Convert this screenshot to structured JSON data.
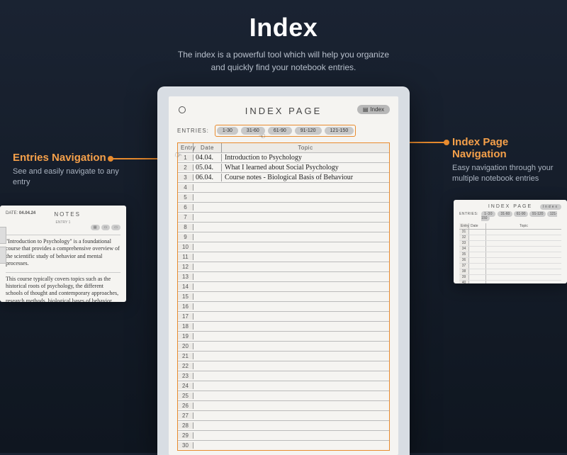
{
  "hero": {
    "title": "Index",
    "subtitle_l1": "The index is a powerful tool which will help you organize",
    "subtitle_l2": "and quickly find your notebook entries."
  },
  "tablet": {
    "title": "INDEX PAGE",
    "badge": "Index",
    "entries_label": "ENTRIES:",
    "ranges": [
      "1-30",
      "31-60",
      "61-90",
      "91-120",
      "121-150"
    ],
    "columns": {
      "entry": "Entry",
      "date": "Date",
      "topic": "Topic"
    },
    "rows": [
      {
        "n": "1",
        "d": "04.04.",
        "t": "Introduction to Psychology"
      },
      {
        "n": "2",
        "d": "05.04.",
        "t": "What I learned about Social Psychology"
      },
      {
        "n": "3",
        "d": "06.04.",
        "t": "Course notes - Biological Basis of Behaviour"
      },
      {
        "n": "4",
        "d": "",
        "t": ""
      },
      {
        "n": "5",
        "d": "",
        "t": ""
      },
      {
        "n": "6",
        "d": "",
        "t": ""
      },
      {
        "n": "7",
        "d": "",
        "t": ""
      },
      {
        "n": "8",
        "d": "",
        "t": ""
      },
      {
        "n": "9",
        "d": "",
        "t": ""
      },
      {
        "n": "10",
        "d": "",
        "t": ""
      },
      {
        "n": "11",
        "d": "",
        "t": ""
      },
      {
        "n": "12",
        "d": "",
        "t": ""
      },
      {
        "n": "13",
        "d": "",
        "t": ""
      },
      {
        "n": "14",
        "d": "",
        "t": ""
      },
      {
        "n": "15",
        "d": "",
        "t": ""
      },
      {
        "n": "16",
        "d": "",
        "t": ""
      },
      {
        "n": "17",
        "d": "",
        "t": ""
      },
      {
        "n": "18",
        "d": "",
        "t": ""
      },
      {
        "n": "19",
        "d": "",
        "t": ""
      },
      {
        "n": "20",
        "d": "",
        "t": ""
      },
      {
        "n": "21",
        "d": "",
        "t": ""
      },
      {
        "n": "22",
        "d": "",
        "t": ""
      },
      {
        "n": "23",
        "d": "",
        "t": ""
      },
      {
        "n": "24",
        "d": "",
        "t": ""
      },
      {
        "n": "25",
        "d": "",
        "t": ""
      },
      {
        "n": "26",
        "d": "",
        "t": ""
      },
      {
        "n": "27",
        "d": "",
        "t": ""
      },
      {
        "n": "28",
        "d": "",
        "t": ""
      },
      {
        "n": "29",
        "d": "",
        "t": ""
      },
      {
        "n": "30",
        "d": "",
        "t": ""
      }
    ]
  },
  "callout_left": {
    "title": "Entries Navigation",
    "body": "See and easily navigate to any entry"
  },
  "callout_right": {
    "title": "Index Page Navigation",
    "body": "Easy navigation through your multiple notebook entries"
  },
  "mini_left": {
    "date_label": "DATE:",
    "date": "04.04.24",
    "title": "NOTES",
    "sub": "ENTRY 1",
    "para1": "\"Introduction to Psychology\" is a foundational course that provides a comprehensive overview of the scientific study of behavior and mental processes.",
    "para2": "This course typically covers topics such as the historical roots of psychology, the different schools of thought and contemporary approaches, research methods, biological bases of behavior, sensation and perception, learning and memory, thinking and intelligence, developmental psychology, personality and social psychology, and psychological disorders and their treatment."
  },
  "mini_right": {
    "title": "INDEX PAGE",
    "badge": "Index",
    "label": "ENTRIES:",
    "ranges": [
      "1-30",
      "31-60",
      "61-90",
      "91-120",
      "121-150"
    ],
    "cols": {
      "e": "Entry",
      "d": "Date",
      "t": "Topic"
    },
    "nums": [
      "31",
      "32",
      "33",
      "34",
      "35",
      "36",
      "37",
      "38",
      "39",
      "40"
    ]
  },
  "colors": {
    "accent": "#e88b2e",
    "bg_top": "#1a2332",
    "bg_bottom": "#0f1620",
    "paper": "#f5f4f1",
    "pill": "#c8c8c8"
  }
}
